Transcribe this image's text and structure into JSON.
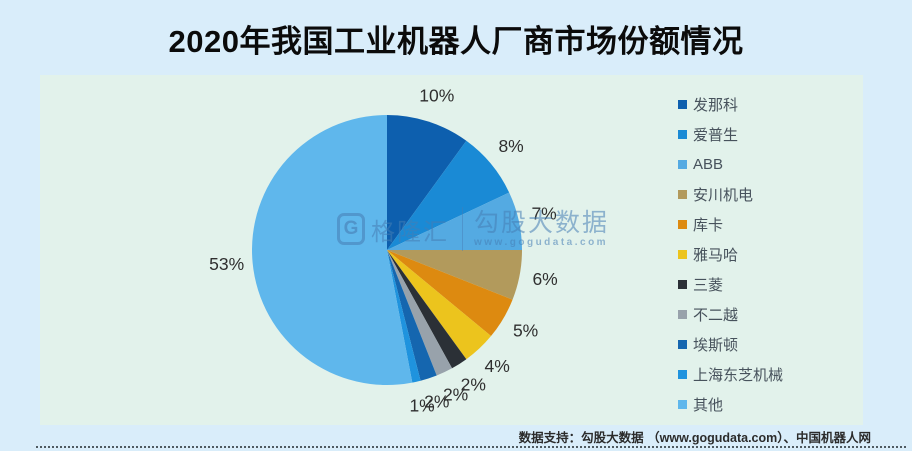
{
  "page": {
    "background": "#d9edfa",
    "plot_background": "#e2f2eb"
  },
  "title": "2020年我国工业机器人厂商市场份额情况",
  "chart_data": {
    "type": "pie",
    "title": "2020年我国工业机器人厂商市场份额情况",
    "unit": "percent",
    "start_angle": "12-oclock",
    "direction": "clockwise",
    "legend_position": "right",
    "label_format": "{value}%",
    "series": [
      {
        "label": "发那科",
        "value": 10,
        "color": "#0d5fae"
      },
      {
        "label": "爱普生",
        "value": 8,
        "color": "#1a8ad5"
      },
      {
        "label": "ABB",
        "value": 7,
        "color": "#54aae2"
      },
      {
        "label": "安川机电",
        "value": 6,
        "color": "#b29a5c"
      },
      {
        "label": "库卡",
        "value": 5,
        "color": "#dd8a10"
      },
      {
        "label": "雅马哈",
        "value": 4,
        "color": "#ecc41d"
      },
      {
        "label": "三菱",
        "value": 2,
        "color": "#2b3036"
      },
      {
        "label": "不二越",
        "value": 2,
        "color": "#98a2ab"
      },
      {
        "label": "埃斯顿",
        "value": 2,
        "color": "#1566af"
      },
      {
        "label": "上海东芝机械",
        "value": 1,
        "color": "#1f93de"
      },
      {
        "label": "其他",
        "value": 53,
        "color": "#5fb7ec"
      }
    ]
  },
  "watermark": {
    "logo": "G",
    "brand": "格隆汇",
    "name": "勾股大数据",
    "url": "www.gogudata.com"
  },
  "footer": {
    "source": "数据支持：勾股大数据 （www.gogudata.com）、中国机器人网"
  }
}
